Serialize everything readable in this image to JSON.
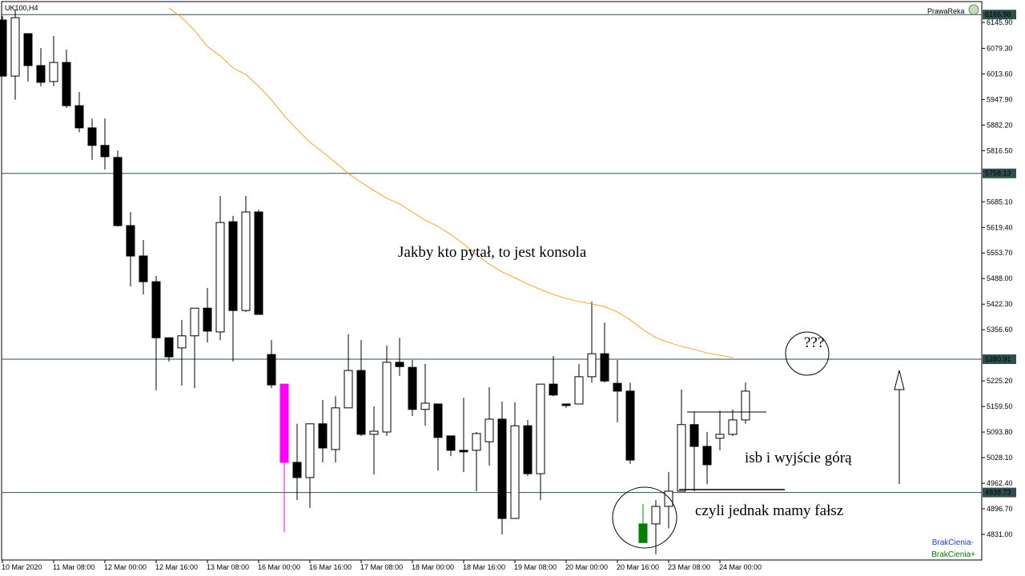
{
  "chart_data": {
    "type": "candlestick",
    "title": "UK100,H4",
    "categories": [
      "10 Mar 2020",
      null,
      null,
      null,
      "11 Mar 08:00",
      null,
      null,
      null,
      "12 Mar 00:00",
      null,
      null,
      null,
      "12 Mar 16:00",
      null,
      null,
      null,
      "13 Mar 08:00",
      null,
      null,
      null,
      "16 Mar 00:00",
      null,
      null,
      null,
      "16 Mar 16:00",
      null,
      null,
      null,
      "17 Mar 08:00",
      null,
      null,
      null,
      "18 Mar 00:00",
      null,
      null,
      null,
      "18 Mar 16:00",
      null,
      null,
      null,
      "19 Mar 08:00",
      null,
      null,
      null,
      "20 Mar 00:00",
      null,
      null,
      null,
      "20 Mar 16:00",
      null,
      null,
      null,
      "23 Mar 08:00",
      null,
      null,
      null,
      "24 Mar 00:00",
      null,
      null
    ],
    "open": [
      6152,
      6008,
      6117,
      6035,
      5994,
      6043,
      5932,
      5875,
      5830,
      5799,
      5624,
      5546,
      5480,
      5336,
      5310,
      5341,
      5412,
      5351,
      5634,
      5406,
      5659,
      5293,
      5217,
      5016,
      4977,
      5115,
      5049,
      5156,
      5252,
      5088,
      5094,
      5273,
      5260,
      5152,
      5166,
      5084,
      5047,
      5047,
      5069,
      5127,
      4872,
      5110,
      4987,
      5217,
      5166,
      5166,
      5236,
      5295,
      5219,
      5199,
      4810,
      4858,
      4903,
      4942,
      5113,
      5057,
      5078,
      5088,
      5125
    ],
    "high": [
      6162,
      6179,
      6117,
      6080,
      6111,
      6076,
      5967,
      5899,
      5899,
      5817,
      5659,
      5587,
      5495,
      5336,
      5382,
      5412,
      5464,
      5700,
      5649,
      5700,
      5665,
      5330,
      5217,
      5115,
      5115,
      5176,
      5186,
      5345,
      5330,
      5160,
      5316,
      5336,
      5279,
      5269,
      5166,
      5084,
      5182,
      5094,
      5209,
      5172,
      5170,
      5125,
      5217,
      5289,
      5166,
      5269,
      5429,
      5375,
      5279,
      5221,
      4909,
      4919,
      4991,
      5203,
      5145,
      5094,
      5149,
      5152,
      5221
    ],
    "low": [
      6008,
      5947,
      5994,
      5982,
      5982,
      5926,
      5864,
      5793,
      5768,
      5622,
      5468,
      5447,
      5201,
      5275,
      5213,
      5207,
      5324,
      5330,
      5275,
      5402,
      5396,
      5207,
      4837,
      4919,
      4899,
      5016,
      5016,
      5156,
      5084,
      4985,
      5084,
      5238,
      5135,
      5110,
      4995,
      5032,
      4991,
      4942,
      5008,
      4831,
      4872,
      4981,
      4919,
      5186,
      5156,
      5166,
      5221,
      5221,
      5119,
      5012,
      4810,
      4780,
      4847,
      4942,
      4942,
      4960,
      5047,
      5084,
      5115
    ],
    "close": [
      6008,
      6158,
      6035,
      5992,
      6043,
      5932,
      5875,
      5830,
      5801,
      5624,
      5546,
      5480,
      5336,
      5287,
      5341,
      5412,
      5353,
      5632,
      5406,
      5659,
      5396,
      5215,
      5016,
      4977,
      5115,
      5053,
      5156,
      5252,
      5088,
      5096,
      5273,
      5262,
      5152,
      5168,
      5080,
      5047,
      5043,
      5090,
      5127,
      4872,
      5110,
      4987,
      5217,
      5189,
      5162,
      5236,
      5295,
      5225,
      5199,
      5022,
      4858,
      4903,
      4942,
      5113,
      5057,
      5010,
      5088,
      5125,
      5199
    ],
    "colors": [
      "#000000",
      "#ffffff",
      "#000000",
      "#000000",
      "#ffffff",
      "#000000",
      "#000000",
      "#000000",
      "#000000",
      "#000000",
      "#000000",
      "#000000",
      "#000000",
      "#000000",
      "#ffffff",
      "#ffffff",
      "#000000",
      "#ffffff",
      "#000000",
      "#ffffff",
      "#000000",
      "#000000",
      "#ff00ff",
      "#000000",
      "#ffffff",
      "#000000",
      "#ffffff",
      "#ffffff",
      "#000000",
      "#ffffff",
      "#ffffff",
      "#000000",
      "#000000",
      "#ffffff",
      "#000000",
      "#000000",
      "#000000",
      "#ffffff",
      "#ffffff",
      "#000000",
      "#ffffff",
      "#000000",
      "#ffffff",
      "#000000",
      "#000000",
      "#ffffff",
      "#ffffff",
      "#000000",
      "#000000",
      "#000000",
      "#008000",
      "#ffffff",
      "#ffffff",
      "#ffffff",
      "#000000",
      "#000000",
      "#ffffff",
      "#ffffff",
      "#ffffff"
    ],
    "series": [
      {
        "color": "#f5a623",
        "values": [
          null,
          null,
          null,
          null,
          null,
          null,
          null,
          null,
          null,
          null,
          null,
          null,
          null,
          6183,
          6158,
          6125,
          6084,
          6060,
          6029,
          6012,
          5982,
          5947,
          5906,
          5871,
          5838,
          5813,
          5786,
          5758,
          5735,
          5714,
          5694,
          5680,
          5659,
          5638,
          5622,
          5601,
          5577,
          5550,
          5525,
          5505,
          5490,
          5474,
          5460,
          5447,
          5437,
          5429,
          5423,
          5416,
          5402,
          5382,
          5357,
          5336,
          5324,
          5314,
          5306,
          5297,
          5291,
          5285,
          null
        ]
      }
    ],
    "ylim": [
      4765.3,
      6199.3
    ],
    "yticks": [
      {
        "value": 6145.9,
        "label": "6145.90"
      },
      {
        "value": 6079.3,
        "label": "6079.30"
      },
      {
        "value": 6013.6,
        "label": "6013.60"
      },
      {
        "value": 5947.9,
        "label": "5947.90"
      },
      {
        "value": 5882.2,
        "label": "5882.20"
      },
      {
        "value": 5816.5,
        "label": "5816.50"
      },
      {
        "value": 5685.1,
        "label": "5685.10"
      },
      {
        "value": 5619.4,
        "label": "5619.40"
      },
      {
        "value": 5553.7,
        "label": "5553.70"
      },
      {
        "value": 5488.0,
        "label": "5488.00"
      },
      {
        "value": 5422.3,
        "label": "5422.30"
      },
      {
        "value": 5356.6,
        "label": "5356.60"
      },
      {
        "value": 5225.2,
        "label": "5225.20"
      },
      {
        "value": 5159.5,
        "label": "5159.50"
      },
      {
        "value": 5093.8,
        "label": "5093.80"
      },
      {
        "value": 5028.1,
        "label": "5028.10"
      },
      {
        "value": 4962.4,
        "label": "4962.40"
      },
      {
        "value": 4896.7,
        "label": "4896.70"
      },
      {
        "value": 4831.0,
        "label": "4831.00"
      }
    ],
    "hlines": [
      {
        "value": 6165.98,
        "color": "#2f4f4f"
      },
      {
        "value": 5758.13,
        "color": "#2f4f4f"
      },
      {
        "value": 5280.91,
        "color": "#2f4f4f"
      },
      {
        "value": 4938.73,
        "color": "#2f4f4f"
      }
    ],
    "grid": false,
    "annotations": [
      "Jakby kto pytał, to jest konsola",
      "???",
      "isb i wyjście górą",
      "czyli jednak mamy fałsz"
    ],
    "corner_label": "PrawaReka",
    "indicator_labels": [
      "BrakCienia-",
      "BrakCienia+"
    ]
  }
}
